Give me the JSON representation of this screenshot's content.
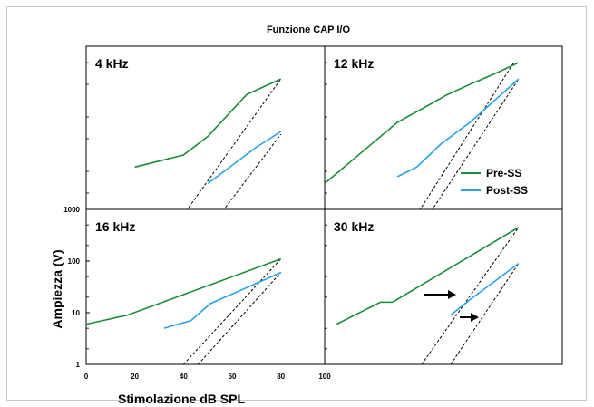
{
  "figure": {
    "title": "Funzione CAP I/O",
    "xlabel": "Stimolazione dB SPL",
    "ylabel": "Ampiezza (V)",
    "legend": [
      {
        "name": "Pre-SS",
        "color": "#1a8a3a"
      },
      {
        "name": "Post-SS",
        "color": "#29a3e0"
      }
    ]
  },
  "chart_data": [
    {
      "type": "line",
      "title": "4 kHz",
      "xlim": [
        0,
        100
      ],
      "ylim": [
        1,
        1000
      ],
      "yscale": "log",
      "series": [
        {
          "name": "Pre-SS",
          "color": "#1a8a3a",
          "x": [
            20,
            40,
            50,
            66,
            80
          ],
          "y": [
            6,
            10,
            22,
            130,
            250
          ]
        },
        {
          "name": "Post-SS",
          "color": "#29a3e0",
          "x": [
            50,
            70,
            80
          ],
          "y": [
            3,
            14,
            27
          ]
        }
      ],
      "reference_lines": [
        {
          "x": [
            40,
            80
          ],
          "y": [
            0.8,
            250
          ]
        },
        {
          "x": [
            55,
            80
          ],
          "y": [
            0.8,
            24
          ]
        }
      ]
    },
    {
      "type": "line",
      "title": "12 kHz",
      "xlim": [
        0,
        100
      ],
      "ylim": [
        1,
        1000
      ],
      "yscale": "log",
      "series": [
        {
          "name": "Pre-SS",
          "color": "#1a8a3a",
          "x": [
            0,
            30,
            40,
            50,
            60,
            70,
            80
          ],
          "y": [
            3,
            40,
            70,
            125,
            200,
            310,
            500
          ]
        },
        {
          "name": "Post-SS",
          "color": "#29a3e0",
          "x": [
            30,
            38,
            48,
            60,
            70,
            80
          ],
          "y": [
            4,
            6,
            16,
            40,
            100,
            250
          ]
        }
      ],
      "reference_lines": [
        {
          "x": [
            38,
            78
          ],
          "y": [
            0.8,
            500
          ]
        },
        {
          "x": [
            43,
            80
          ],
          "y": [
            0.8,
            250
          ]
        }
      ]
    },
    {
      "type": "line",
      "title": "16 kHz",
      "xlim": [
        0,
        100
      ],
      "ylim": [
        1,
        1000
      ],
      "yscale": "log",
      "xticks": [
        0,
        20,
        40,
        60,
        80,
        100
      ],
      "yticks": [
        1,
        10,
        100,
        1000
      ],
      "series": [
        {
          "name": "Pre-SS",
          "color": "#1a8a3a",
          "x": [
            0,
            17,
            80
          ],
          "y": [
            6,
            9,
            110
          ]
        },
        {
          "name": "Post-SS",
          "color": "#29a3e0",
          "x": [
            32,
            43,
            51,
            80
          ],
          "y": [
            5,
            7,
            15,
            60
          ]
        }
      ],
      "reference_lines": [
        {
          "x": [
            40,
            80
          ],
          "y": [
            1,
            110
          ]
        },
        {
          "x": [
            46,
            80
          ],
          "y": [
            1,
            60
          ]
        }
      ]
    },
    {
      "type": "line",
      "title": "30 kHz",
      "xlim": [
        0,
        100
      ],
      "ylim": [
        1,
        1000
      ],
      "yscale": "log",
      "series": [
        {
          "name": "Pre-SS",
          "color": "#1a8a3a",
          "x": [
            5,
            23,
            28,
            80
          ],
          "y": [
            6,
            16,
            16,
            450
          ]
        },
        {
          "name": "Post-SS",
          "color": "#29a3e0",
          "x": [
            52,
            60,
            80
          ],
          "y": [
            9,
            18,
            90
          ]
        }
      ],
      "reference_lines": [
        {
          "x": [
            40,
            80
          ],
          "y": [
            1,
            450
          ]
        },
        {
          "x": [
            52,
            80
          ],
          "y": [
            1,
            90
          ]
        }
      ],
      "annotations": [
        "arrow",
        "arrow"
      ]
    }
  ]
}
